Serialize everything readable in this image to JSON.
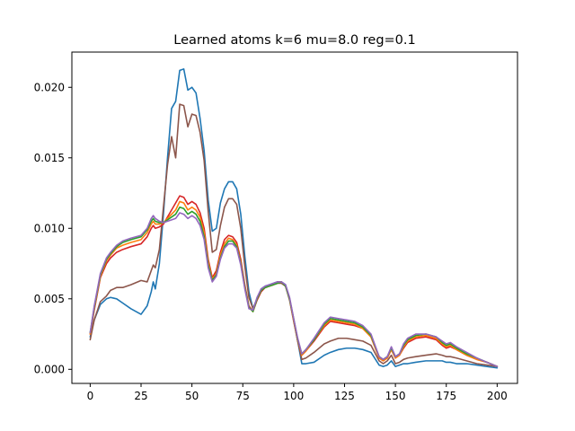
{
  "chart_data": {
    "type": "line",
    "title": "Learned atoms k=6 mu=8.0 reg=0.1",
    "xlabel": "",
    "ylabel": "",
    "xlim": [
      -9,
      210
    ],
    "ylim": [
      -0.001,
      0.0225
    ],
    "x_ticks": [
      0,
      25,
      50,
      75,
      100,
      125,
      150,
      175,
      200
    ],
    "y_ticks": [
      0.0,
      0.005,
      0.01,
      0.015,
      0.02
    ],
    "y_tick_labels": [
      "0.000",
      "0.005",
      "0.010",
      "0.015",
      "0.020"
    ],
    "grid": false,
    "legend": "none",
    "x": [
      0,
      2,
      5,
      8,
      10,
      13,
      16,
      20,
      25,
      28,
      30,
      31,
      32,
      34,
      36,
      38,
      40,
      42,
      44,
      46,
      48,
      50,
      52,
      54,
      56,
      58,
      60,
      62,
      64,
      66,
      68,
      70,
      72,
      74,
      76,
      78,
      80,
      82,
      84,
      86,
      88,
      90,
      92,
      94,
      96,
      98,
      100,
      102,
      104,
      106,
      110,
      115,
      118,
      122,
      126,
      130,
      134,
      138,
      142,
      144,
      146,
      148,
      150,
      152,
      154,
      156,
      160,
      165,
      170,
      173,
      175,
      177,
      180,
      185,
      190,
      195,
      200
    ],
    "series": [
      {
        "color": "#1f77b4",
        "values": [
          0.0023,
          0.0035,
          0.0046,
          0.005,
          0.0051,
          0.005,
          0.0047,
          0.0043,
          0.0039,
          0.0045,
          0.0055,
          0.0062,
          0.0057,
          0.0075,
          0.011,
          0.015,
          0.0185,
          0.019,
          0.0212,
          0.0213,
          0.0198,
          0.02,
          0.0196,
          0.0178,
          0.0155,
          0.012,
          0.0098,
          0.01,
          0.0118,
          0.0128,
          0.0133,
          0.0133,
          0.0128,
          0.011,
          0.008,
          0.0055,
          0.0043,
          0.005,
          0.0057,
          0.0059,
          0.006,
          0.0061,
          0.0062,
          0.0062,
          0.006,
          0.005,
          0.0035,
          0.002,
          0.0004,
          0.0004,
          0.0005,
          0.001,
          0.0012,
          0.0014,
          0.0015,
          0.0015,
          0.0014,
          0.0012,
          0.0003,
          0.0002,
          0.0003,
          0.0006,
          0.0002,
          0.0003,
          0.0004,
          0.0004,
          0.0005,
          0.0006,
          0.0006,
          0.0006,
          0.0005,
          0.0005,
          0.0004,
          0.0004,
          0.0003,
          0.0002,
          0.0001
        ]
      },
      {
        "color": "#8c564b",
        "values": [
          0.0021,
          0.0035,
          0.0048,
          0.0052,
          0.0056,
          0.0058,
          0.0058,
          0.006,
          0.0063,
          0.0062,
          0.007,
          0.0074,
          0.0072,
          0.0085,
          0.0115,
          0.0145,
          0.0165,
          0.015,
          0.0188,
          0.0187,
          0.0172,
          0.0181,
          0.018,
          0.0168,
          0.0148,
          0.0112,
          0.0083,
          0.0085,
          0.0102,
          0.0115,
          0.0121,
          0.0121,
          0.0117,
          0.01,
          0.0073,
          0.0051,
          0.0043,
          0.005,
          0.0056,
          0.0058,
          0.0059,
          0.006,
          0.0061,
          0.0061,
          0.0059,
          0.0049,
          0.0034,
          0.002,
          0.0007,
          0.0008,
          0.0012,
          0.0018,
          0.002,
          0.0022,
          0.0022,
          0.0021,
          0.002,
          0.0017,
          0.0006,
          0.0004,
          0.0006,
          0.001,
          0.0004,
          0.0005,
          0.0007,
          0.0008,
          0.0009,
          0.001,
          0.0011,
          0.001,
          0.0009,
          0.0009,
          0.0008,
          0.0006,
          0.0004,
          0.0003,
          0.0002
        ]
      },
      {
        "color": "#d62728",
        "values": [
          0.0025,
          0.0042,
          0.0065,
          0.0075,
          0.0079,
          0.0083,
          0.0085,
          0.0087,
          0.0089,
          0.0094,
          0.01,
          0.0102,
          0.01,
          0.0101,
          0.0103,
          0.0108,
          0.0113,
          0.0118,
          0.0123,
          0.0122,
          0.0117,
          0.0119,
          0.0117,
          0.0111,
          0.01,
          0.0078,
          0.0065,
          0.007,
          0.0083,
          0.0092,
          0.0095,
          0.0094,
          0.009,
          0.0078,
          0.006,
          0.0045,
          0.0041,
          0.0049,
          0.0055,
          0.0058,
          0.0059,
          0.006,
          0.0062,
          0.0062,
          0.0059,
          0.005,
          0.0035,
          0.002,
          0.001,
          0.0013,
          0.002,
          0.003,
          0.0034,
          0.0033,
          0.0032,
          0.0031,
          0.0029,
          0.0023,
          0.0008,
          0.0006,
          0.0008,
          0.0014,
          0.0008,
          0.001,
          0.0015,
          0.0019,
          0.0022,
          0.0023,
          0.0021,
          0.0017,
          0.0015,
          0.0016,
          0.0014,
          0.001,
          0.0007,
          0.0005,
          0.0002
        ]
      },
      {
        "color": "#ff7f0e",
        "values": [
          0.0025,
          0.0043,
          0.0066,
          0.0077,
          0.0081,
          0.0086,
          0.0088,
          0.009,
          0.0092,
          0.0097,
          0.0103,
          0.0105,
          0.0103,
          0.0103,
          0.0104,
          0.0107,
          0.011,
          0.0113,
          0.0119,
          0.0118,
          0.0113,
          0.0115,
          0.0113,
          0.0108,
          0.0097,
          0.0076,
          0.0064,
          0.0068,
          0.0081,
          0.0089,
          0.0093,
          0.0092,
          0.0088,
          0.0076,
          0.0059,
          0.0044,
          0.0041,
          0.005,
          0.0056,
          0.0058,
          0.0059,
          0.006,
          0.0061,
          0.0062,
          0.0059,
          0.005,
          0.0035,
          0.0021,
          0.001,
          0.0013,
          0.0021,
          0.0031,
          0.0035,
          0.0034,
          0.0033,
          0.0032,
          0.0029,
          0.0023,
          0.0008,
          0.0006,
          0.0008,
          0.0014,
          0.0008,
          0.001,
          0.0016,
          0.002,
          0.0023,
          0.0024,
          0.0022,
          0.0018,
          0.0016,
          0.0017,
          0.0014,
          0.001,
          0.0007,
          0.0005,
          0.0002
        ]
      },
      {
        "color": "#2ca02c",
        "values": [
          0.0026,
          0.0044,
          0.0067,
          0.0078,
          0.0082,
          0.0087,
          0.009,
          0.0092,
          0.0094,
          0.0099,
          0.0105,
          0.0107,
          0.0105,
          0.0104,
          0.0104,
          0.0106,
          0.0108,
          0.011,
          0.0115,
          0.0114,
          0.011,
          0.0112,
          0.011,
          0.0105,
          0.0094,
          0.0074,
          0.0063,
          0.0067,
          0.0079,
          0.0087,
          0.0091,
          0.0091,
          0.0087,
          0.0075,
          0.0058,
          0.0044,
          0.0041,
          0.005,
          0.0056,
          0.0058,
          0.0059,
          0.006,
          0.0061,
          0.0062,
          0.0059,
          0.005,
          0.0036,
          0.0021,
          0.0011,
          0.0014,
          0.0021,
          0.0032,
          0.0036,
          0.0035,
          0.0034,
          0.0033,
          0.003,
          0.0024,
          0.0009,
          0.0007,
          0.0009,
          0.0015,
          0.0009,
          0.0011,
          0.0017,
          0.0021,
          0.0024,
          0.0025,
          0.0023,
          0.0019,
          0.0017,
          0.0018,
          0.0015,
          0.0011,
          0.0008,
          0.0005,
          0.0002
        ]
      },
      {
        "color": "#9467bd",
        "values": [
          0.0026,
          0.0045,
          0.0068,
          0.0079,
          0.0083,
          0.0088,
          0.0091,
          0.0093,
          0.0095,
          0.01,
          0.0107,
          0.0109,
          0.0107,
          0.0105,
          0.0104,
          0.0105,
          0.0106,
          0.0107,
          0.0111,
          0.011,
          0.0107,
          0.0109,
          0.0107,
          0.0102,
          0.0092,
          0.0072,
          0.0062,
          0.0066,
          0.0078,
          0.0086,
          0.0089,
          0.0089,
          0.0086,
          0.0074,
          0.0057,
          0.0043,
          0.0042,
          0.0051,
          0.0057,
          0.0059,
          0.006,
          0.0061,
          0.0062,
          0.0062,
          0.006,
          0.0051,
          0.0036,
          0.0022,
          0.0011,
          0.0014,
          0.0022,
          0.0033,
          0.0037,
          0.0036,
          0.0035,
          0.0034,
          0.0031,
          0.0025,
          0.0009,
          0.0007,
          0.0009,
          0.0016,
          0.0009,
          0.0011,
          0.0018,
          0.0022,
          0.0025,
          0.0025,
          0.0023,
          0.002,
          0.0018,
          0.0019,
          0.0016,
          0.0012,
          0.0008,
          0.0005,
          0.0002
        ]
      }
    ]
  }
}
